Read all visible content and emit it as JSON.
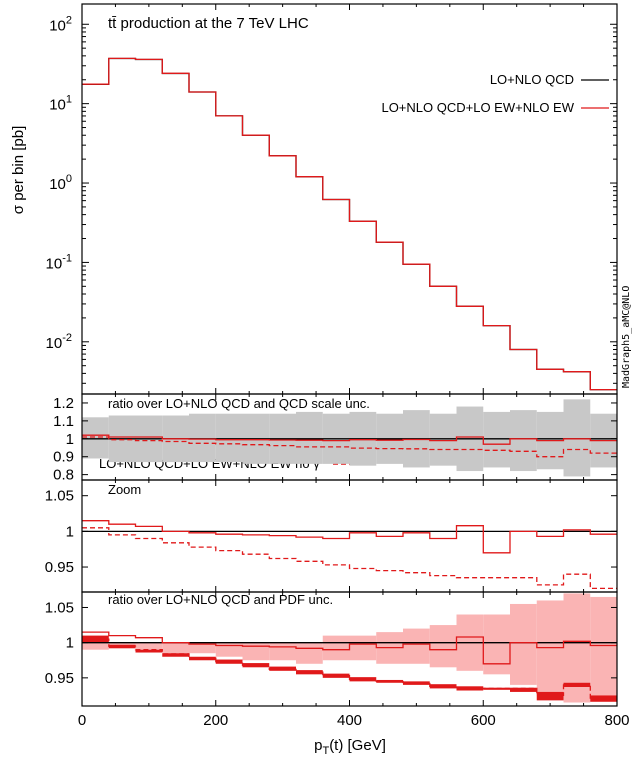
{
  "figure": {
    "watermark": "MadGraph5_aMC@NLO",
    "xlabel_main": "p",
    "xlabel_sub": "T",
    "xlabel_rest": "(t) [GeV]",
    "x_ticks": [
      "0",
      "200",
      "400",
      "600",
      "800"
    ]
  },
  "chart_data": [
    {
      "type": "line",
      "panel": "main",
      "scale": "log",
      "title_prefix": "t",
      "title_bar": "t̄",
      "title_rest": " production at the 7 TeV LHC",
      "ylabel": "σ per bin [pb]",
      "xlim": [
        0,
        800
      ],
      "ylim": [
        0.0022,
        180
      ],
      "y_ticks": [
        {
          "value": 0.01,
          "base": "10",
          "exp": "-2"
        },
        {
          "value": 0.1,
          "base": "10",
          "exp": "-1"
        },
        {
          "value": 1,
          "base": "10",
          "exp": "0"
        },
        {
          "value": 10,
          "base": "10",
          "exp": "1"
        },
        {
          "value": 100,
          "base": "10",
          "exp": "2"
        }
      ],
      "bin_edges": [
        0,
        40,
        80,
        120,
        160,
        200,
        240,
        280,
        320,
        360,
        400,
        440,
        480,
        520,
        560,
        600,
        640,
        680,
        720,
        760,
        800
      ],
      "series": [
        {
          "name": "LO+NLO QCD",
          "color": "#000000",
          "dash": "",
          "values": [
            17.5,
            37,
            36,
            24,
            14,
            7,
            4,
            2.2,
            1.2,
            0.62,
            0.33,
            0.18,
            0.095,
            0.05,
            0.028,
            0.016,
            0.008,
            0.0045,
            0.0042,
            0.0025
          ]
        },
        {
          "name": "LO+NLO QCD+LO EW+NLO EW",
          "color": "#e0191a",
          "dash": "",
          "values": [
            17.6,
            37.2,
            36.1,
            24.1,
            14,
            7,
            4,
            2.2,
            1.2,
            0.62,
            0.33,
            0.18,
            0.095,
            0.05,
            0.028,
            0.016,
            0.008,
            0.0045,
            0.0042,
            0.0025
          ]
        }
      ]
    },
    {
      "type": "line",
      "panel": "ratio-scale",
      "label": "ratio over LO+NLO QCD and QCD scale unc.",
      "legend_label": "LO+NLO QCD+LO EW+NLO EW no γ",
      "ylim": [
        0.77,
        1.25
      ],
      "y_ticks": [
        "0.8",
        "0.9",
        "1",
        "1.1",
        "1.2"
      ],
      "y_tick_values": [
        0.8,
        0.9,
        1,
        1.1,
        1.2
      ],
      "band_color": "#c8c8c8",
      "band_upper": [
        1.12,
        1.13,
        1.13,
        1.13,
        1.14,
        1.14,
        1.14,
        1.14,
        1.15,
        1.14,
        1.15,
        1.14,
        1.16,
        1.14,
        1.18,
        1.15,
        1.16,
        1.15,
        1.22,
        1.14
      ],
      "band_lower": [
        0.89,
        0.87,
        0.87,
        0.87,
        0.87,
        0.87,
        0.86,
        0.86,
        0.86,
        0.86,
        0.85,
        0.86,
        0.84,
        0.85,
        0.82,
        0.84,
        0.82,
        0.83,
        0.79,
        0.84
      ],
      "series": [
        {
          "name": "LO+NLO QCD",
          "color": "#000000",
          "dash": "",
          "values": [
            1,
            1,
            1,
            1,
            1,
            1,
            1,
            1,
            1,
            1,
            1,
            1,
            1,
            1,
            1,
            1,
            1,
            1,
            1,
            1
          ]
        },
        {
          "name": "LO+NLO QCD+LO EW+NLO EW",
          "color": "#e0191a",
          "dash": "",
          "values": [
            1.02,
            1.01,
            1.01,
            1.0,
            0.998,
            0.995,
            0.995,
            0.993,
            0.992,
            0.99,
            0.995,
            0.992,
            0.996,
            0.99,
            1.01,
            0.97,
            1.0,
            0.99,
            1.0,
            0.99
          ]
        },
        {
          "name": "LO+NLO QCD+LO EW+NLO EW no γ",
          "color": "#e0191a",
          "dash": "5,3",
          "values": [
            1.01,
            0.995,
            0.99,
            0.985,
            0.975,
            0.972,
            0.967,
            0.962,
            0.955,
            0.955,
            0.948,
            0.945,
            0.944,
            0.94,
            0.94,
            0.936,
            0.93,
            0.9,
            0.94,
            0.92
          ]
        }
      ]
    },
    {
      "type": "line",
      "panel": "zoom",
      "label": "Zoom",
      "ylim": [
        0.915,
        1.072
      ],
      "y_ticks": [
        "0.95",
        "1",
        "1.05"
      ],
      "y_tick_values": [
        0.95,
        1,
        1.05
      ],
      "series": [
        {
          "name": "LO+NLO QCD",
          "color": "#000000",
          "dash": "",
          "values": [
            1,
            1,
            1,
            1,
            1,
            1,
            1,
            1,
            1,
            1,
            1,
            1,
            1,
            1,
            1,
            1,
            1,
            1,
            1,
            1
          ]
        },
        {
          "name": "LO+NLO QCD+LO EW+NLO EW",
          "color": "#e0191a",
          "dash": "",
          "values": [
            1.015,
            1.01,
            1.007,
            1.0,
            0.998,
            0.996,
            0.995,
            0.994,
            0.992,
            0.99,
            0.998,
            0.993,
            0.998,
            0.99,
            1.008,
            0.97,
            1.0,
            0.993,
            1.002,
            0.996
          ]
        },
        {
          "name": "LO+NLO QCD+LO EW+NLO EW no γ",
          "color": "#e0191a",
          "dash": "5,3",
          "values": [
            1.005,
            0.995,
            0.99,
            0.984,
            0.978,
            0.973,
            0.968,
            0.962,
            0.958,
            0.953,
            0.948,
            0.945,
            0.942,
            0.938,
            0.935,
            0.935,
            0.935,
            0.925,
            0.94,
            0.92
          ]
        }
      ]
    },
    {
      "type": "line",
      "panel": "ratio-pdf",
      "label": "ratio over LO+NLO QCD and PDF unc.",
      "ylim": [
        0.91,
        1.072
      ],
      "y_ticks": [
        "0.95",
        "1",
        "1.05"
      ],
      "y_tick_values": [
        0.95,
        1,
        1.05
      ],
      "band_color": "#fab4b4",
      "dark_band_color": "#e0191a",
      "band_upper": [
        1.01,
        1.0,
        1.0,
        1.0,
        1.0,
        1.0,
        1.0,
        1.0,
        1.0,
        1.01,
        1.01,
        1.015,
        1.02,
        1.025,
        1.04,
        1.04,
        1.055,
        1.06,
        1.07,
        1.065
      ],
      "band_lower": [
        0.99,
        0.995,
        0.99,
        0.985,
        0.985,
        0.98,
        0.975,
        0.975,
        0.97,
        0.975,
        0.975,
        0.97,
        0.97,
        0.965,
        0.96,
        0.955,
        0.94,
        0.925,
        0.915,
        0.92
      ],
      "dark_upper": [
        1.01,
        0.997,
        0.99,
        0.985,
        0.98,
        0.976,
        0.971,
        0.966,
        0.961,
        0.956,
        0.951,
        0.947,
        0.945,
        0.941,
        0.938,
        0.936,
        0.936,
        0.93,
        0.943,
        0.925
      ],
      "dark_lower": [
        1.0,
        0.992,
        0.986,
        0.98,
        0.975,
        0.97,
        0.965,
        0.96,
        0.955,
        0.95,
        0.945,
        0.943,
        0.94,
        0.935,
        0.932,
        0.933,
        0.93,
        0.918,
        0.937,
        0.916
      ],
      "series": [
        {
          "name": "LO+NLO QCD",
          "color": "#000000",
          "dash": "",
          "values": [
            1,
            1,
            1,
            1,
            1,
            1,
            1,
            1,
            1,
            1,
            1,
            1,
            1,
            1,
            1,
            1,
            1,
            1,
            1,
            1
          ]
        },
        {
          "name": "LO+NLO QCD+LO EW+NLO EW",
          "color": "#e0191a",
          "dash": "",
          "values": [
            1.015,
            1.01,
            1.007,
            1.0,
            0.998,
            0.996,
            0.995,
            0.994,
            0.992,
            0.99,
            0.998,
            0.993,
            0.998,
            0.99,
            1.008,
            0.97,
            1.0,
            0.993,
            1.002,
            0.996
          ]
        },
        {
          "name": "LO+NLO QCD+LO EW+NLO EW no γ",
          "color": "#e0191a",
          "dash": "5,3",
          "values": [
            1.005,
            0.995,
            0.99,
            0.984,
            0.978,
            0.973,
            0.968,
            0.962,
            0.958,
            0.953,
            0.948,
            0.945,
            0.942,
            0.938,
            0.935,
            0.935,
            0.935,
            0.925,
            0.94,
            0.92
          ]
        }
      ]
    }
  ]
}
